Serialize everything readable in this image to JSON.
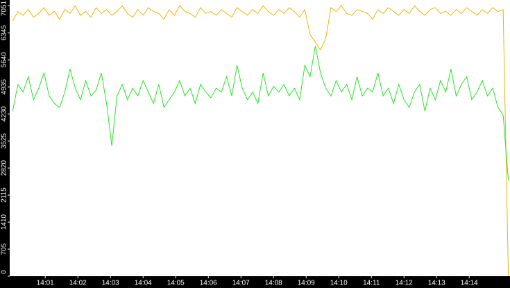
{
  "chart_data": {
    "type": "line",
    "x": [
      0,
      0.16,
      0.32,
      0.48,
      0.64,
      0.8,
      0.96,
      1.12,
      1.28,
      1.44,
      1.6,
      1.76,
      1.92,
      2.08,
      2.24,
      2.4,
      2.56,
      2.72,
      2.88,
      3.04,
      3.2,
      3.36,
      3.52,
      3.68,
      3.84,
      4,
      4.16,
      4.32,
      4.48,
      4.64,
      4.8,
      4.96,
      5.12,
      5.28,
      5.44,
      5.6,
      5.76,
      5.92,
      6.08,
      6.24,
      6.4,
      6.56,
      6.72,
      6.88,
      7.04,
      7.2,
      7.36,
      7.52,
      7.68,
      7.84,
      8,
      8.16,
      8.32,
      8.48,
      8.64,
      8.8,
      8.96,
      9.12,
      9.28,
      9.44,
      9.6,
      9.76,
      9.92,
      10.08,
      10.24,
      10.4,
      10.56,
      10.72,
      10.88,
      11.04,
      11.2,
      11.36,
      11.52,
      11.68,
      11.84,
      12,
      12.16,
      12.32,
      12.48,
      12.64,
      12.8,
      12.96,
      13.12,
      13.28,
      13.44,
      13.6,
      13.76,
      13.92,
      14.08,
      14.24,
      14.4,
      14.56,
      14.72,
      14.88,
      15.04,
      15.2
    ],
    "series": [
      {
        "color": "#f0b400",
        "values": [
          6650,
          6900,
          6800,
          6950,
          6750,
          6850,
          7000,
          6800,
          6900,
          6700,
          6950,
          6850,
          7050,
          6800,
          6900,
          6750,
          7000,
          6850,
          6950,
          6800,
          6900,
          7050,
          6850,
          6750,
          6950,
          6800,
          7000,
          6900,
          6850,
          6700,
          6950,
          6800,
          7050,
          6900,
          6850,
          6750,
          7000,
          6850,
          6900,
          6800,
          6950,
          6850,
          6750,
          7000,
          6900,
          6800,
          6950,
          6850,
          7050,
          6900,
          6800,
          6950,
          6850,
          7000,
          6900,
          6750,
          6950,
          6300,
          6100,
          5900,
          6200,
          7000,
          6900,
          7050,
          6850,
          6800,
          6950,
          6900,
          6850,
          6700,
          6950,
          6850,
          7000,
          6900,
          6800,
          6950,
          6850,
          7050,
          6900,
          6800,
          6950,
          7000,
          6850,
          6900,
          6800,
          6950,
          6850,
          7000,
          6900,
          6800,
          6950,
          6850,
          7000,
          6900,
          6950,
          0
        ]
      },
      {
        "color": "#22e822",
        "values": [
          4300,
          5000,
          4800,
          5200,
          4600,
          4900,
          5300,
          4700,
          4500,
          4400,
          4800,
          5400,
          4900,
          4600,
          5100,
          4700,
          4850,
          5300,
          4500,
          3400,
          4700,
          5000,
          4600,
          4900,
          4700,
          5100,
          4800,
          4500,
          5000,
          4400,
          4600,
          4800,
          5100,
          4700,
          4900,
          4500,
          5000,
          4800,
          4650,
          4900,
          4800,
          5200,
          4700,
          5500,
          4900,
          4600,
          4800,
          4500,
          5300,
          4700,
          4950,
          4800,
          5000,
          4700,
          4900,
          4600,
          5500,
          5200,
          6000,
          5300,
          4900,
          4700,
          5100,
          4800,
          5000,
          4600,
          5200,
          4700,
          4900,
          4800,
          5300,
          4700,
          4900,
          4500,
          5000,
          4600,
          4400,
          4800,
          5000,
          4300,
          4900,
          4600,
          5100,
          4800,
          5400,
          4700,
          5000,
          5200,
          4600,
          4800,
          5100,
          4700,
          4900,
          4400,
          4200,
          2500
        ]
      }
    ],
    "xlim": [
      -0.09,
      15.25
    ],
    "xticks": [
      {
        "value": 1,
        "label": "14:01"
      },
      {
        "value": 2,
        "label": "14:02"
      },
      {
        "value": 3,
        "label": "14:03"
      },
      {
        "value": 4,
        "label": "14:04"
      },
      {
        "value": 5,
        "label": "14:05"
      },
      {
        "value": 6,
        "label": "14:06"
      },
      {
        "value": 7,
        "label": "14:07"
      },
      {
        "value": 8,
        "label": "14:08"
      },
      {
        "value": 9,
        "label": "14:09"
      },
      {
        "value": 10,
        "label": "14:10"
      },
      {
        "value": 11,
        "label": "14:11"
      },
      {
        "value": 12,
        "label": "14:12"
      },
      {
        "value": 13,
        "label": "14:13"
      },
      {
        "value": 14,
        "label": "14:14"
      }
    ],
    "ylim": [
      0,
      7200
    ],
    "yticks": [
      0,
      705,
      1410,
      2115,
      2820,
      3525,
      4230,
      4935,
      5640,
      6345,
      7051
    ]
  }
}
